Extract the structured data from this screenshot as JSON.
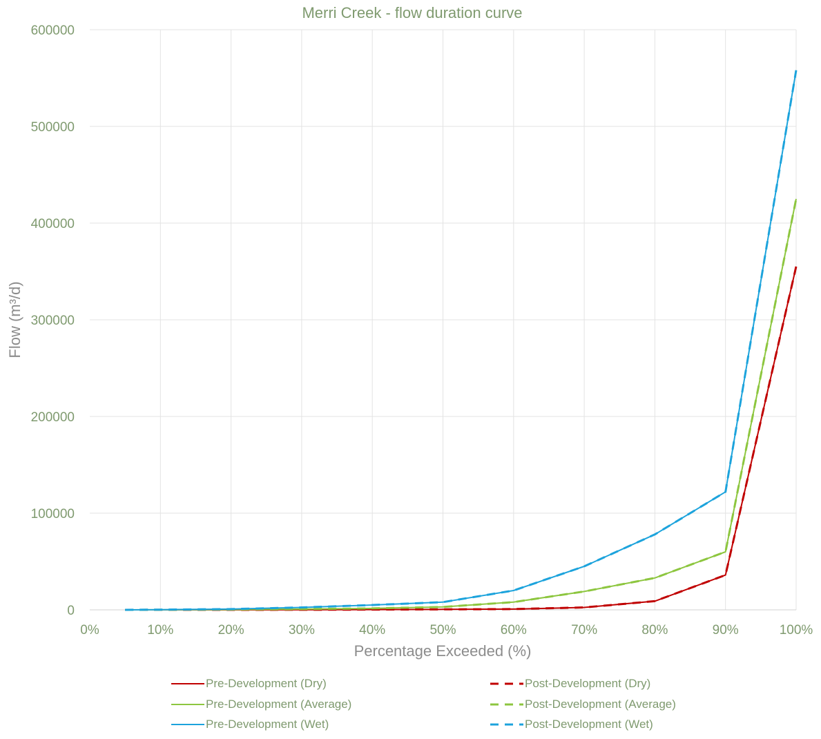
{
  "chart_data": {
    "type": "line",
    "title": "Merri Creek - flow duration curve",
    "xlabel": "Percentage Exceeded (%)",
    "ylabel": "Flow (m³/d)",
    "xlim": [
      0,
      100
    ],
    "ylim": [
      0,
      600000
    ],
    "x_ticks": [
      "0%",
      "10%",
      "20%",
      "30%",
      "40%",
      "50%",
      "60%",
      "70%",
      "80%",
      "90%",
      "100%"
    ],
    "y_ticks": [
      "0",
      "100000",
      "200000",
      "300000",
      "400000",
      "500000",
      "600000"
    ],
    "grid": true,
    "legend_position": "bottom",
    "x": [
      5,
      10,
      20,
      30,
      40,
      50,
      60,
      70,
      80,
      90,
      100
    ],
    "series": [
      {
        "name": "Pre-Development (Dry)",
        "color": "#c00000",
        "dash": "solid",
        "values": [
          0,
          0,
          0,
          100,
          300,
          500,
          800,
          2500,
          9000,
          36000,
          355000
        ]
      },
      {
        "name": "Post-Development (Dry)",
        "color": "#c00000",
        "dash": "dashed",
        "values": [
          0,
          0,
          0,
          100,
          300,
          500,
          800,
          2500,
          9000,
          36000,
          355000
        ]
      },
      {
        "name": "Pre-Development (Average)",
        "color": "#8dc63f",
        "dash": "solid",
        "values": [
          0,
          100,
          300,
          800,
          1500,
          3000,
          8000,
          19000,
          33000,
          60000,
          425000
        ]
      },
      {
        "name": "Post-Development (Average)",
        "color": "#8dc63f",
        "dash": "dashed",
        "values": [
          0,
          100,
          300,
          800,
          1500,
          3000,
          8000,
          19000,
          33000,
          60000,
          425000
        ]
      },
      {
        "name": "Pre-Development (Wet)",
        "color": "#1ca3dc",
        "dash": "solid",
        "values": [
          0,
          200,
          800,
          2500,
          5000,
          8000,
          20000,
          45000,
          78000,
          122000,
          558000
        ]
      },
      {
        "name": "Post-Development (Wet)",
        "color": "#1ca3dc",
        "dash": "dashed",
        "values": [
          0,
          200,
          800,
          2500,
          5000,
          8000,
          20000,
          45000,
          78000,
          122000,
          558000
        ]
      }
    ]
  }
}
